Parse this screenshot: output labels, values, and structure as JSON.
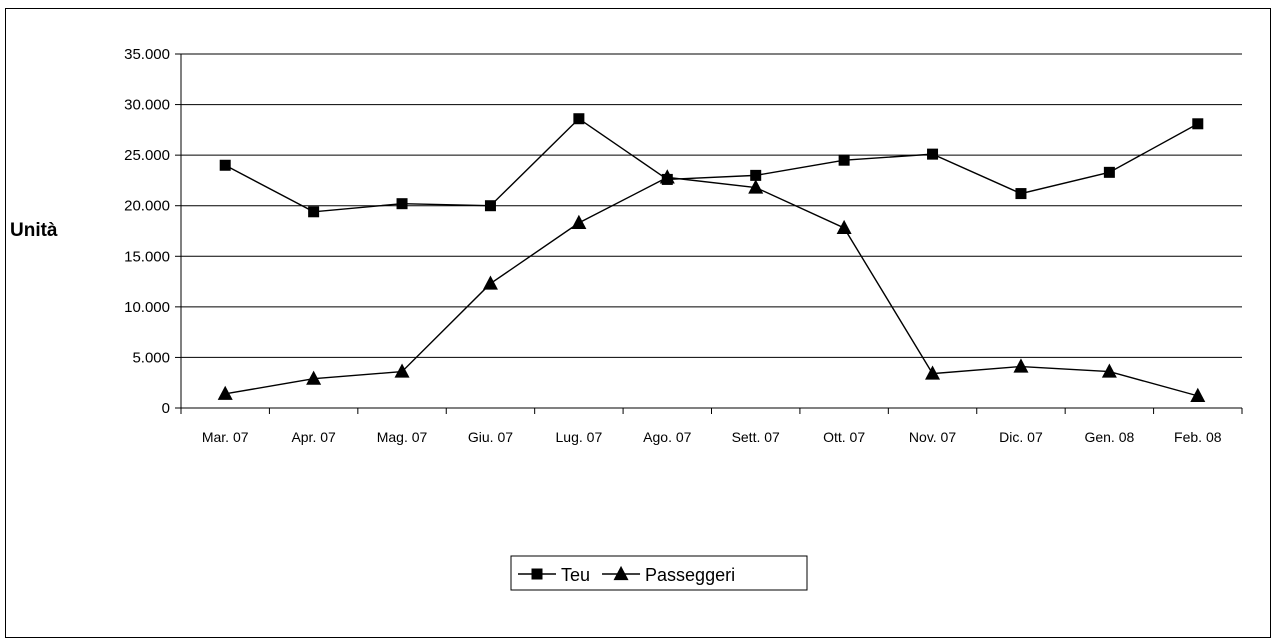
{
  "chart_data": {
    "type": "line",
    "title": "",
    "xlabel": "",
    "ylabel": "Unità",
    "ylim": [
      0,
      35000
    ],
    "yticks": [
      0,
      5000,
      10000,
      15000,
      20000,
      25000,
      30000,
      35000
    ],
    "ytick_labels": [
      "0",
      "5.000",
      "10.000",
      "15.000",
      "20.000",
      "25.000",
      "30.000",
      "35.000"
    ],
    "grid": "horizontal",
    "legend_position": "bottom",
    "categories": [
      "Mar. 07",
      "Apr. 07",
      "Mag. 07",
      "Giu. 07",
      "Lug. 07",
      "Ago. 07",
      "Sett. 07",
      "Ott. 07",
      "Nov. 07",
      "Dic. 07",
      "Gen. 08",
      "Feb. 08"
    ],
    "series": [
      {
        "name": "Teu",
        "marker": "square",
        "color": "#000000",
        "values": [
          24000,
          19400,
          20200,
          20000,
          28600,
          22600,
          23000,
          24500,
          25100,
          21200,
          23300,
          28100
        ]
      },
      {
        "name": "Passeggeri",
        "marker": "triangle",
        "color": "#000000",
        "values": [
          1400,
          2900,
          3600,
          12300,
          18300,
          22800,
          21800,
          17800,
          3400,
          4100,
          3600,
          1200
        ]
      }
    ]
  }
}
